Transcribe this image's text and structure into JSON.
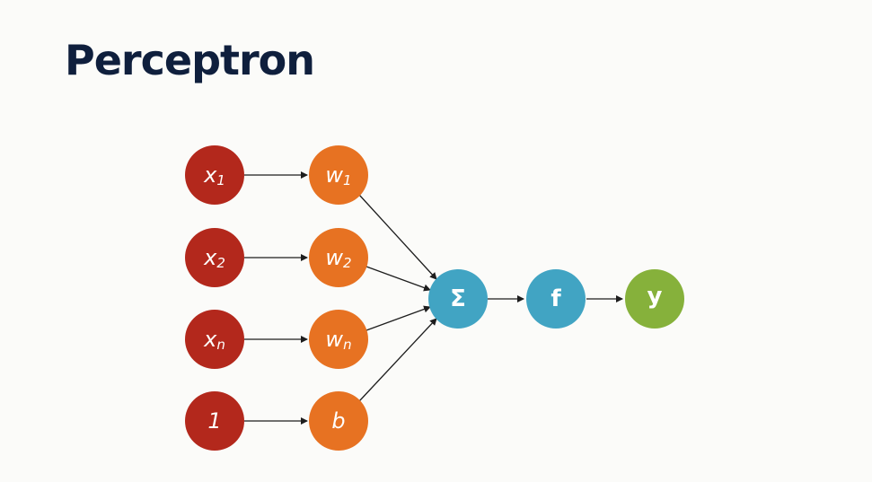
{
  "title": "Perceptron",
  "colors": {
    "input": "#b3281c",
    "weight": "#e77222",
    "sum": "#41a4c3",
    "activation": "#41a4c3",
    "output": "#86b13b",
    "edge": "#1d1d1d",
    "title": "#0f1f3d"
  },
  "inputs": [
    {
      "base": "x",
      "sub": "1"
    },
    {
      "base": "x",
      "sub": "2"
    },
    {
      "base": "x",
      "sub": "n"
    },
    {
      "base": "1",
      "sub": ""
    }
  ],
  "weights": [
    {
      "base": "w",
      "sub": "1"
    },
    {
      "base": "w",
      "sub": "2"
    },
    {
      "base": "w",
      "sub": "n"
    },
    {
      "base": "b",
      "sub": ""
    }
  ],
  "sum_label": "Σ",
  "activation_label": "f",
  "output_label": "y"
}
